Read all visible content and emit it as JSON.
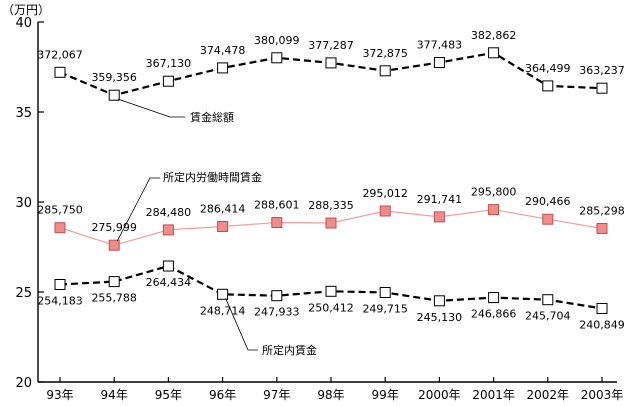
{
  "chart_data": {
    "type": "line",
    "unit": "（万円）",
    "ylim": [
      20,
      40
    ],
    "yticks": [
      "40",
      "35",
      "30",
      "25",
      "20"
    ],
    "categories": [
      "93年",
      "94年",
      "95年",
      "96年",
      "97年",
      "98年",
      "99年",
      "2000年",
      "2001年",
      "2002年",
      "2003年"
    ],
    "grid": false,
    "series": [
      {
        "name": "賃金総額",
        "line_style": "dashed",
        "line_color": "#000000",
        "marker_fill": "#ffffff",
        "values": [
          37.2067,
          35.9356,
          36.713,
          37.4478,
          38.0099,
          37.7287,
          37.2875,
          37.7483,
          38.2862,
          36.4499,
          36.3237
        ],
        "labels": [
          "372,067",
          "359,356",
          "367,130",
          "374,478",
          "380,099",
          "377,287",
          "372,875",
          "377,483",
          "382,862",
          "364,499",
          "363,237"
        ]
      },
      {
        "name": "所定内労働時間賃金",
        "line_style": "solid",
        "line_color": "#f0a0a0",
        "marker_fill": "#f08c8c",
        "values": [
          28.575,
          27.5999,
          28.448,
          28.6414,
          28.8601,
          28.8335,
          29.5012,
          29.1741,
          29.58,
          29.0466,
          28.5298
        ],
        "labels": [
          "285,750",
          "275,999",
          "284,480",
          "286,414",
          "288,601",
          "288,335",
          "295,012",
          "291,741",
          "295,800",
          "290,466",
          "285,298"
        ]
      },
      {
        "name": "所定内賃金",
        "line_style": "dashed",
        "line_color": "#000000",
        "marker_fill": "#ffffff",
        "values": [
          25.4183,
          25.5788,
          26.4434,
          24.8714,
          24.7933,
          25.0412,
          24.9715,
          24.513,
          24.6866,
          24.5704,
          24.0849
        ],
        "labels": [
          "254,183",
          "255,788",
          "264,434",
          "248,714",
          "247,933",
          "250,412",
          "249,715",
          "245,130",
          "246,866",
          "245,704",
          "240,849"
        ]
      }
    ]
  }
}
